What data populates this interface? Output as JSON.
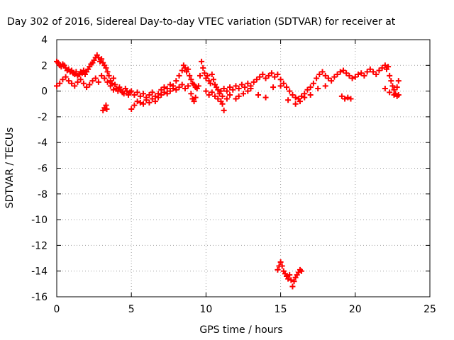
{
  "chart_data": {
    "type": "scatter",
    "title": "Day 302 of 2016, Sidereal Day-to-day VTEC variation (SDTVAR) for receiver at",
    "xlabel": "GPS time / hours",
    "ylabel": "SDTVAR / TECUs",
    "xlim": [
      0,
      25
    ],
    "ylim": [
      -16,
      4
    ],
    "xticks": [
      0,
      5,
      10,
      15,
      20,
      25
    ],
    "yticks": [
      4,
      2,
      0,
      -2,
      -4,
      -6,
      -8,
      -10,
      -12,
      -14,
      -16
    ],
    "grid": true,
    "marker": "+",
    "series": [
      {
        "name": "main-band",
        "color": "#ff0000",
        "points": [
          [
            0.0,
            2.3
          ],
          [
            0.1,
            2.2
          ],
          [
            0.2,
            2.0
          ],
          [
            0.3,
            1.9
          ],
          [
            0.4,
            2.1
          ],
          [
            0.5,
            2.0
          ],
          [
            0.6,
            1.8
          ],
          [
            0.7,
            1.6
          ],
          [
            0.8,
            1.7
          ],
          [
            0.9,
            1.5
          ],
          [
            1.0,
            1.6
          ],
          [
            1.1,
            1.4
          ],
          [
            1.2,
            1.3
          ],
          [
            1.3,
            1.5
          ],
          [
            1.4,
            1.2
          ],
          [
            1.5,
            1.3
          ],
          [
            1.6,
            1.5
          ],
          [
            1.7,
            1.4
          ],
          [
            1.8,
            1.6
          ],
          [
            1.9,
            1.3
          ],
          [
            2.0,
            1.5
          ],
          [
            2.1,
            1.7
          ],
          [
            2.2,
            1.9
          ],
          [
            2.3,
            2.1
          ],
          [
            2.4,
            2.2
          ],
          [
            2.5,
            2.4
          ],
          [
            2.6,
            2.6
          ],
          [
            2.7,
            2.8
          ],
          [
            2.8,
            2.6
          ],
          [
            2.9,
            2.3
          ],
          [
            3.0,
            2.5
          ],
          [
            3.1,
            2.2
          ],
          [
            3.2,
            2.0
          ],
          [
            3.3,
            1.8
          ],
          [
            3.4,
            1.5
          ],
          [
            3.5,
            1.2
          ],
          [
            3.6,
            0.8
          ],
          [
            3.7,
            0.6
          ],
          [
            3.8,
            1.0
          ],
          [
            3.9,
            0.5
          ],
          [
            4.0,
            0.2
          ],
          [
            4.1,
            0.0
          ],
          [
            4.2,
            0.3
          ],
          [
            4.3,
            0.1
          ],
          [
            4.4,
            -0.1
          ],
          [
            4.5,
            -0.2
          ],
          [
            4.6,
            0.2
          ],
          [
            4.7,
            0.0
          ],
          [
            4.8,
            -0.3
          ],
          [
            4.9,
            -0.1
          ],
          [
            5.0,
            0.0
          ],
          [
            5.2,
            -0.3
          ],
          [
            5.4,
            -0.1
          ],
          [
            5.6,
            -0.4
          ],
          [
            5.8,
            -0.2
          ],
          [
            6.0,
            -0.5
          ],
          [
            6.2,
            -0.3
          ],
          [
            6.4,
            -0.1
          ],
          [
            6.6,
            -0.4
          ],
          [
            6.8,
            -0.2
          ],
          [
            7.0,
            0.1
          ],
          [
            7.2,
            0.3
          ],
          [
            7.4,
            0.2
          ],
          [
            7.6,
            0.5
          ],
          [
            7.8,
            0.4
          ],
          [
            8.0,
            0.8
          ],
          [
            8.2,
            1.2
          ],
          [
            8.4,
            1.6
          ],
          [
            8.5,
            2.0
          ],
          [
            8.6,
            1.8
          ],
          [
            8.7,
            1.5
          ],
          [
            8.8,
            1.7
          ],
          [
            8.9,
            1.2
          ],
          [
            9.0,
            0.9
          ],
          [
            9.1,
            0.6
          ],
          [
            9.2,
            0.5
          ],
          [
            9.3,
            0.3
          ],
          [
            9.4,
            0.2
          ],
          [
            9.5,
            0.4
          ],
          [
            9.6,
            1.2
          ],
          [
            9.7,
            2.3
          ],
          [
            9.8,
            1.8
          ],
          [
            9.9,
            1.4
          ],
          [
            10.0,
            1.0
          ],
          [
            10.1,
            1.2
          ],
          [
            10.2,
            0.8
          ],
          [
            10.3,
            0.6
          ],
          [
            10.4,
            1.3
          ],
          [
            10.5,
            0.9
          ],
          [
            10.6,
            0.5
          ],
          [
            10.7,
            0.3
          ],
          [
            10.8,
            0.1
          ],
          [
            10.9,
            -0.2
          ],
          [
            11.0,
            0.0
          ],
          [
            11.1,
            -0.4
          ],
          [
            11.2,
            0.2
          ],
          [
            11.4,
            0.0
          ],
          [
            11.6,
            0.3
          ],
          [
            11.8,
            0.1
          ],
          [
            12.0,
            0.4
          ],
          [
            12.2,
            0.2
          ],
          [
            12.4,
            0.5
          ],
          [
            12.6,
            0.3
          ],
          [
            12.8,
            0.6
          ],
          [
            13.0,
            0.4
          ],
          [
            13.2,
            0.7
          ],
          [
            13.4,
            0.9
          ],
          [
            13.6,
            1.1
          ],
          [
            13.8,
            1.3
          ],
          [
            14.0,
            1.0
          ],
          [
            14.2,
            1.2
          ],
          [
            14.4,
            1.4
          ],
          [
            14.6,
            1.1
          ],
          [
            14.8,
            1.3
          ],
          [
            15.0,
            0.9
          ],
          [
            15.2,
            0.6
          ],
          [
            15.4,
            0.3
          ],
          [
            15.6,
            0.0
          ],
          [
            15.8,
            -0.3
          ],
          [
            16.0,
            -0.5
          ],
          [
            16.2,
            -0.6
          ],
          [
            16.4,
            -0.4
          ],
          [
            16.6,
            -0.2
          ],
          [
            16.8,
            0.1
          ],
          [
            17.0,
            0.3
          ],
          [
            17.2,
            0.6
          ],
          [
            17.4,
            1.0
          ],
          [
            17.6,
            1.3
          ],
          [
            17.8,
            1.5
          ],
          [
            18.0,
            1.2
          ],
          [
            18.2,
            1.0
          ],
          [
            18.4,
            0.8
          ],
          [
            18.6,
            1.1
          ],
          [
            18.8,
            1.3
          ],
          [
            19.0,
            1.5
          ],
          [
            19.2,
            1.6
          ],
          [
            19.4,
            1.4
          ],
          [
            19.6,
            1.2
          ],
          [
            19.8,
            1.0
          ],
          [
            20.0,
            1.1
          ],
          [
            20.2,
            1.3
          ],
          [
            20.4,
            1.4
          ],
          [
            20.6,
            1.2
          ],
          [
            20.8,
            1.5
          ],
          [
            21.0,
            1.7
          ],
          [
            21.2,
            1.5
          ],
          [
            21.4,
            1.3
          ],
          [
            21.6,
            1.6
          ],
          [
            21.8,
            1.8
          ],
          [
            22.0,
            2.0
          ],
          [
            22.1,
            1.7
          ],
          [
            22.2,
            1.9
          ],
          [
            22.3,
            1.2
          ],
          [
            22.4,
            0.8
          ],
          [
            22.5,
            0.4
          ],
          [
            22.6,
            0.1
          ],
          [
            22.7,
            -0.2
          ],
          [
            22.8,
            0.3
          ],
          [
            22.9,
            0.8
          ]
        ]
      },
      {
        "name": "lower-band",
        "color": "#ff0000",
        "points": [
          [
            0.0,
            0.4
          ],
          [
            0.2,
            0.6
          ],
          [
            0.4,
            0.9
          ],
          [
            0.6,
            1.1
          ],
          [
            0.8,
            0.8
          ],
          [
            1.0,
            0.6
          ],
          [
            1.2,
            0.4
          ],
          [
            1.4,
            0.7
          ],
          [
            1.6,
            0.9
          ],
          [
            1.8,
            0.6
          ],
          [
            2.0,
            0.3
          ],
          [
            2.2,
            0.5
          ],
          [
            2.4,
            0.8
          ],
          [
            2.6,
            1.0
          ],
          [
            2.8,
            0.7
          ],
          [
            3.0,
            1.2
          ],
          [
            3.2,
            1.0
          ],
          [
            3.4,
            0.7
          ],
          [
            3.6,
            0.4
          ],
          [
            3.8,
            0.1
          ],
          [
            5.0,
            -1.4
          ],
          [
            5.2,
            -1.1
          ],
          [
            5.4,
            -0.8
          ],
          [
            5.6,
            -0.9
          ],
          [
            5.8,
            -1.0
          ],
          [
            6.0,
            -0.7
          ],
          [
            6.2,
            -0.9
          ],
          [
            6.4,
            -0.6
          ],
          [
            6.6,
            -0.8
          ],
          [
            6.8,
            -0.5
          ],
          [
            7.0,
            -0.3
          ],
          [
            7.2,
            -0.1
          ],
          [
            7.4,
            -0.2
          ],
          [
            7.6,
            0.0
          ],
          [
            7.8,
            0.2
          ],
          [
            8.0,
            0.1
          ],
          [
            8.2,
            0.3
          ],
          [
            8.4,
            0.5
          ],
          [
            8.6,
            0.2
          ],
          [
            8.8,
            0.4
          ],
          [
            9.0,
            -0.2
          ],
          [
            9.1,
            -0.6
          ],
          [
            9.2,
            -0.8
          ],
          [
            9.3,
            -0.5
          ],
          [
            10.0,
            0.0
          ],
          [
            10.2,
            -0.3
          ],
          [
            10.4,
            -0.1
          ],
          [
            10.6,
            -0.4
          ],
          [
            10.8,
            -0.6
          ],
          [
            11.0,
            -0.8
          ],
          [
            11.1,
            -1.0
          ],
          [
            11.2,
            -1.5
          ],
          [
            11.4,
            -0.6
          ],
          [
            11.6,
            -0.3
          ],
          [
            12.0,
            -0.6
          ],
          [
            12.2,
            -0.4
          ],
          [
            12.5,
            -0.2
          ],
          [
            12.8,
            0.0
          ],
          [
            13.0,
            0.2
          ],
          [
            13.5,
            -0.3
          ],
          [
            14.0,
            -0.5
          ],
          [
            14.5,
            0.3
          ],
          [
            15.0,
            0.4
          ],
          [
            15.5,
            -0.7
          ],
          [
            16.0,
            -1.0
          ],
          [
            16.3,
            -0.8
          ],
          [
            16.6,
            -0.5
          ],
          [
            17.0,
            -0.3
          ],
          [
            17.5,
            0.2
          ],
          [
            18.0,
            0.4
          ],
          [
            22.0,
            0.2
          ],
          [
            22.3,
            -0.1
          ],
          [
            22.6,
            -0.3
          ],
          [
            22.8,
            -0.4
          ],
          [
            22.9,
            -0.3
          ]
        ]
      },
      {
        "name": "small-segments",
        "color": "#ff0000",
        "points": [
          [
            3.1,
            -1.5
          ],
          [
            3.2,
            -1.3
          ],
          [
            3.3,
            -1.1
          ],
          [
            3.35,
            -1.4
          ],
          [
            19.1,
            -0.4
          ],
          [
            19.3,
            -0.6
          ],
          [
            19.5,
            -0.5
          ],
          [
            19.7,
            -0.6
          ]
        ]
      },
      {
        "name": "outlier-segment",
        "color": "#ff0000",
        "points": [
          [
            14.8,
            -13.9
          ],
          [
            14.9,
            -13.6
          ],
          [
            15.0,
            -13.3
          ],
          [
            15.1,
            -13.6
          ],
          [
            15.2,
            -14.0
          ],
          [
            15.3,
            -14.2
          ],
          [
            15.4,
            -14.4
          ],
          [
            15.5,
            -14.6
          ],
          [
            15.6,
            -14.3
          ],
          [
            15.7,
            -14.7
          ],
          [
            15.8,
            -15.2
          ],
          [
            15.9,
            -14.8
          ],
          [
            16.0,
            -14.5
          ],
          [
            16.1,
            -14.3
          ],
          [
            16.2,
            -14.1
          ],
          [
            16.3,
            -13.9
          ],
          [
            16.4,
            -14.0
          ]
        ]
      }
    ]
  }
}
